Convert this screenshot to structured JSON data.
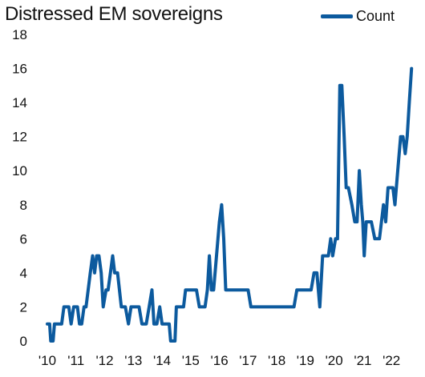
{
  "chart_data": {
    "type": "line",
    "title": "Distressed EM sovereigns",
    "xlabel": "",
    "ylabel": "",
    "ylim": [
      0,
      18
    ],
    "yticks": [
      0,
      2,
      4,
      6,
      8,
      10,
      12,
      14,
      16,
      18
    ],
    "xlim": [
      2010,
      2022.75
    ],
    "xticks": [
      {
        "value": 2010,
        "label": "'10"
      },
      {
        "value": 2011,
        "label": "'11"
      },
      {
        "value": 2012,
        "label": "'12"
      },
      {
        "value": 2013,
        "label": "'13"
      },
      {
        "value": 2014,
        "label": "'14"
      },
      {
        "value": 2015,
        "label": "'15"
      },
      {
        "value": 2016,
        "label": "'16"
      },
      {
        "value": 2017,
        "label": "'17"
      },
      {
        "value": 2018,
        "label": "'18"
      },
      {
        "value": 2019,
        "label": "'19"
      },
      {
        "value": 2020,
        "label": "'20"
      },
      {
        "value": 2021,
        "label": "'21"
      },
      {
        "value": 2022,
        "label": "'22"
      }
    ],
    "grid": false,
    "legend_position": "top-right",
    "series": [
      {
        "name": "Count",
        "color": "#0c5a9e",
        "points": [
          [
            2010.0,
            1
          ],
          [
            2010.08,
            1
          ],
          [
            2010.12,
            0
          ],
          [
            2010.2,
            0
          ],
          [
            2010.25,
            1
          ],
          [
            2010.4,
            1
          ],
          [
            2010.5,
            1
          ],
          [
            2010.58,
            2
          ],
          [
            2010.75,
            2
          ],
          [
            2010.83,
            1
          ],
          [
            2010.92,
            2
          ],
          [
            2011.05,
            2
          ],
          [
            2011.12,
            1
          ],
          [
            2011.2,
            1
          ],
          [
            2011.28,
            2
          ],
          [
            2011.35,
            2
          ],
          [
            2011.5,
            4
          ],
          [
            2011.58,
            5
          ],
          [
            2011.65,
            4
          ],
          [
            2011.72,
            5
          ],
          [
            2011.8,
            5
          ],
          [
            2011.88,
            4
          ],
          [
            2011.95,
            2
          ],
          [
            2012.05,
            3
          ],
          [
            2012.12,
            3
          ],
          [
            2012.2,
            4
          ],
          [
            2012.28,
            5
          ],
          [
            2012.35,
            4
          ],
          [
            2012.45,
            4
          ],
          [
            2012.58,
            2
          ],
          [
            2012.72,
            2
          ],
          [
            2012.83,
            1
          ],
          [
            2012.92,
            2
          ],
          [
            2013.05,
            2
          ],
          [
            2013.2,
            2
          ],
          [
            2013.3,
            1
          ],
          [
            2013.45,
            1
          ],
          [
            2013.55,
            2
          ],
          [
            2013.65,
            3
          ],
          [
            2013.72,
            1
          ],
          [
            2013.82,
            1
          ],
          [
            2013.92,
            2
          ],
          [
            2014.0,
            1
          ],
          [
            2014.1,
            1
          ],
          [
            2014.25,
            1
          ],
          [
            2014.3,
            0
          ],
          [
            2014.45,
            0
          ],
          [
            2014.5,
            2
          ],
          [
            2014.75,
            2
          ],
          [
            2014.82,
            3
          ],
          [
            2015.2,
            3
          ],
          [
            2015.3,
            2
          ],
          [
            2015.5,
            2
          ],
          [
            2015.58,
            3
          ],
          [
            2015.65,
            5
          ],
          [
            2015.72,
            3
          ],
          [
            2015.8,
            3
          ],
          [
            2016.0,
            7
          ],
          [
            2016.08,
            8
          ],
          [
            2016.15,
            6
          ],
          [
            2016.22,
            3
          ],
          [
            2016.5,
            3
          ],
          [
            2016.9,
            3
          ],
          [
            2017.0,
            3
          ],
          [
            2017.1,
            2
          ],
          [
            2017.5,
            2
          ],
          [
            2018.0,
            2
          ],
          [
            2018.6,
            2
          ],
          [
            2018.7,
            3
          ],
          [
            2019.0,
            3
          ],
          [
            2019.2,
            3
          ],
          [
            2019.3,
            4
          ],
          [
            2019.4,
            4
          ],
          [
            2019.5,
            2
          ],
          [
            2019.6,
            5
          ],
          [
            2019.8,
            5
          ],
          [
            2019.88,
            6
          ],
          [
            2019.95,
            5
          ],
          [
            2020.05,
            6
          ],
          [
            2020.12,
            6
          ],
          [
            2020.2,
            15
          ],
          [
            2020.27,
            15
          ],
          [
            2020.35,
            12
          ],
          [
            2020.42,
            9
          ],
          [
            2020.5,
            9
          ],
          [
            2020.62,
            8
          ],
          [
            2020.72,
            7
          ],
          [
            2020.8,
            7
          ],
          [
            2020.88,
            10
          ],
          [
            2020.95,
            8
          ],
          [
            2021.0,
            7
          ],
          [
            2021.05,
            5
          ],
          [
            2021.12,
            7
          ],
          [
            2021.3,
            7
          ],
          [
            2021.42,
            6
          ],
          [
            2021.58,
            6
          ],
          [
            2021.65,
            7
          ],
          [
            2021.72,
            8
          ],
          [
            2021.8,
            7
          ],
          [
            2021.88,
            9
          ],
          [
            2022.05,
            9
          ],
          [
            2022.12,
            8
          ],
          [
            2022.22,
            10
          ],
          [
            2022.32,
            12
          ],
          [
            2022.4,
            12
          ],
          [
            2022.48,
            11
          ],
          [
            2022.55,
            12
          ],
          [
            2022.62,
            14
          ],
          [
            2022.7,
            16
          ]
        ]
      }
    ]
  }
}
